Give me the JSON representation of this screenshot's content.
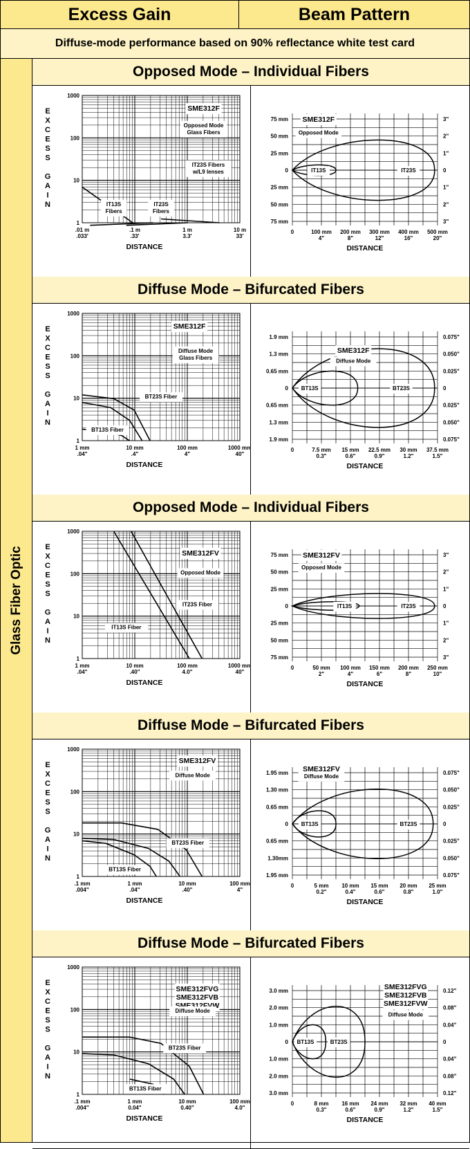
{
  "header": {
    "excess_gain": "Excess Gain",
    "beam_pattern": "Beam Pattern"
  },
  "subheader": "Diffuse-mode performance based on 90% reflectance white test card",
  "sidebar_label": "Glass Fiber Optic",
  "sections": [
    {
      "title": "Opposed Mode – Individual Fibers",
      "gain": {
        "ylabel_letters": [
          "E",
          "X",
          "C",
          "E",
          "S",
          "S",
          "",
          "G",
          "A",
          "I",
          "N"
        ],
        "y_ticks": [
          "1000",
          "100",
          "10",
          "1"
        ],
        "decades": 3,
        "x_ticks": [
          {
            "top": ".01 m",
            "bot": ".033'"
          },
          {
            "top": ".1 m",
            "bot": ".33'"
          },
          {
            "top": "1 m",
            "bot": "3.3'"
          },
          {
            "top": "10 m",
            "bot": "33'"
          }
        ],
        "xlabel": "DISTANCE",
        "boxes": [
          {
            "lines": [
              "SME312F"
            ],
            "fx": 0.77,
            "fy": 0.06,
            "big": true
          },
          {
            "lines": [
              "Opposed Mode",
              "Glass Fibers"
            ],
            "fx": 0.77,
            "fy": 0.2
          },
          {
            "lines": [
              "IT23S Fibers",
              "w/L9 lenses"
            ],
            "fx": 0.8,
            "fy": 0.51
          },
          {
            "lines": [
              "IT13S",
              "Fibers"
            ],
            "fx": 0.2,
            "fy": 0.82
          },
          {
            "lines": [
              "IT23S",
              "Fibers"
            ],
            "fx": 0.5,
            "fy": 0.82
          }
        ],
        "curves": [
          [
            [
              0.0,
              0.72
            ],
            [
              0.32,
              1.0
            ]
          ],
          [
            [
              0.05,
              1.02
            ],
            [
              0.45,
              1.0
            ]
          ],
          [
            [
              0.28,
              1.02
            ],
            [
              0.67,
              1.0
            ]
          ],
          [
            [
              0.5,
              0.97
            ],
            [
              0.87,
              1.0
            ]
          ]
        ]
      },
      "beam": {
        "left_ticks": [
          "75 mm",
          "50 mm",
          "25 mm",
          "0",
          "25 mm",
          "50 mm",
          "75 mm"
        ],
        "right_ticks": [
          "3\"",
          "2\"",
          "1\"",
          "0",
          "1\"",
          "2\"",
          "3\""
        ],
        "x_ticks": [
          {
            "top": "0",
            "bot": ""
          },
          {
            "top": "100 mm",
            "bot": "4\""
          },
          {
            "top": "200 mm",
            "bot": "8\""
          },
          {
            "top": "300 mm",
            "bot": "12\""
          },
          {
            "top": "400 mm",
            "bot": "16\""
          },
          {
            "top": "500 mm",
            "bot": "20\""
          }
        ],
        "xlabel": "DISTANCE",
        "labels": [
          {
            "lines": [
              "SME312F"
            ],
            "fx": 0.18,
            "fy": 0.06,
            "big": true
          },
          {
            "lines": [
              "Opposed Mode"
            ],
            "fx": 0.18,
            "fy": 0.2
          }
        ],
        "lobes": [
          {
            "len": 0.3,
            "half": 0.4,
            "label": "IT13S",
            "lx": 0.18
          },
          {
            "len": 0.98,
            "half": 2.3,
            "label": "IT23S",
            "lx": 0.8
          }
        ]
      }
    },
    {
      "title": "Diffuse Mode – Bifurcated Fibers",
      "gain": {
        "ylabel_letters": [
          "E",
          "X",
          "C",
          "E",
          "S",
          "S",
          "",
          "G",
          "A",
          "I",
          "N"
        ],
        "y_ticks": [
          "1000",
          "100",
          "10",
          "1"
        ],
        "decades": 3,
        "x_ticks": [
          {
            "top": "1 mm",
            "bot": ".04\""
          },
          {
            "top": "10 mm",
            "bot": ".4\""
          },
          {
            "top": "100 mm",
            "bot": "4\""
          },
          {
            "top": "1000 mm",
            "bot": "40\""
          }
        ],
        "xlabel": "DISTANCE",
        "boxes": [
          {
            "lines": [
              "SME312F"
            ],
            "fx": 0.68,
            "fy": 0.06,
            "big": true
          },
          {
            "lines": [
              "Diffuse Mode",
              "Glass Fibers"
            ],
            "fx": 0.72,
            "fy": 0.26
          },
          {
            "lines": [
              "BT23S Fiber"
            ],
            "fx": 0.5,
            "fy": 0.62
          },
          {
            "lines": [
              "BT13S Fiber"
            ],
            "fx": 0.16,
            "fy": 0.88
          }
        ],
        "curves": [
          [
            [
              0.0,
              0.64
            ],
            [
              0.2,
              0.67
            ],
            [
              0.33,
              0.76
            ],
            [
              0.43,
              1.0
            ]
          ],
          [
            [
              0.0,
              0.7
            ],
            [
              0.18,
              0.74
            ],
            [
              0.3,
              0.84
            ],
            [
              0.38,
              1.0
            ]
          ],
          [
            [
              0.0,
              0.91
            ],
            [
              0.15,
              0.93
            ],
            [
              0.25,
              0.96
            ],
            [
              0.3,
              1.0
            ]
          ]
        ]
      },
      "beam": {
        "left_ticks": [
          "1.9 mm",
          "1.3 mm",
          "0.65 mm",
          "0",
          "0.65 mm",
          "1.3 mm",
          "1.9 mm"
        ],
        "right_ticks": [
          "0.075\"",
          "0.050\"",
          "0.025\"",
          "0",
          "0.025\"",
          "0.050\"",
          "0.075\""
        ],
        "x_ticks": [
          {
            "top": "0",
            "bot": ""
          },
          {
            "top": "7.5 mm",
            "bot": "0.3\""
          },
          {
            "top": "15 mm",
            "bot": "0.6\""
          },
          {
            "top": "22.5 mm",
            "bot": "0.9\""
          },
          {
            "top": "30 mm",
            "bot": "1.2\""
          },
          {
            "top": "37.5 mm",
            "bot": "1.5\""
          }
        ],
        "xlabel": "DISTANCE",
        "labels": [
          {
            "lines": [
              "SME312F"
            ],
            "fx": 0.42,
            "fy": 0.19,
            "big": true
          },
          {
            "lines": [
              "Diffuse Mode"
            ],
            "fx": 0.42,
            "fy": 0.3
          }
        ],
        "lobes": [
          {
            "len": 0.45,
            "half": 1.3,
            "label": "BT13S",
            "lx": 0.12
          },
          {
            "len": 0.98,
            "half": 3.0,
            "label": "BT23S",
            "lx": 0.75
          }
        ]
      }
    },
    {
      "title": "Opposed Mode – Individual Fibers",
      "gain": {
        "ylabel_letters": [
          "E",
          "X",
          "C",
          "E",
          "S",
          "S",
          "",
          "G",
          "A",
          "I",
          "N"
        ],
        "y_ticks": [
          "1000",
          "100",
          "10",
          "1"
        ],
        "decades": 3,
        "x_ticks": [
          {
            "top": "1 mm",
            "bot": ".04\""
          },
          {
            "top": "10 mm",
            "bot": ".40\""
          },
          {
            "top": "100 mm",
            "bot": "4.0\""
          },
          {
            "top": "1000 mm",
            "bot": "40\""
          }
        ],
        "xlabel": "DISTANCE",
        "boxes": [
          {
            "lines": [
              "SME312FV"
            ],
            "fx": 0.75,
            "fy": 0.13,
            "big": true
          },
          {
            "lines": [
              "Opposed Mode"
            ],
            "fx": 0.75,
            "fy": 0.29
          },
          {
            "lines": [
              "IT23S Fiber"
            ],
            "fx": 0.73,
            "fy": 0.54
          },
          {
            "lines": [
              "IT13S Fiber"
            ],
            "fx": 0.28,
            "fy": 0.72
          }
        ],
        "curves": [
          [
            [
              0.2,
              0.0
            ],
            [
              0.68,
              1.0
            ]
          ],
          [
            [
              0.31,
              0.0
            ],
            [
              0.76,
              1.0
            ]
          ]
        ]
      },
      "beam": {
        "left_ticks": [
          "75 mm",
          "50 mm",
          "25 mm",
          "0",
          "25 mm",
          "50 mm",
          "75 mm"
        ],
        "right_ticks": [
          "3\"",
          "2\"",
          "1\"",
          "0",
          "1\"",
          "2\"",
          "3\""
        ],
        "x_ticks": [
          {
            "top": "0",
            "bot": ""
          },
          {
            "top": "50 mm",
            "bot": "2\""
          },
          {
            "top": "100 mm",
            "bot": "4\""
          },
          {
            "top": "150 mm",
            "bot": "6\""
          },
          {
            "top": "200 mm",
            "bot": "8\""
          },
          {
            "top": "250 mm",
            "bot": "10\""
          }
        ],
        "xlabel": "DISTANCE",
        "labels": [
          {
            "lines": [
              "SME312FV"
            ],
            "fx": 0.2,
            "fy": 0.06,
            "big": true
          },
          {
            "lines": [
              "Opposed Mode"
            ],
            "fx": 0.2,
            "fy": 0.19
          }
        ],
        "lobes": [
          {
            "len": 0.46,
            "half": 0.32,
            "label": "IT13S",
            "lx": 0.36
          },
          {
            "len": 0.98,
            "half": 0.95,
            "label": "IT23S",
            "lx": 0.8
          }
        ]
      }
    },
    {
      "title": "Diffuse Mode – Bifurcated Fibers",
      "gain": {
        "ylabel_letters": [
          "E",
          "X",
          "C",
          "E",
          "S",
          "S",
          "",
          "G",
          "A",
          "I",
          "N"
        ],
        "y_ticks": [
          "1000",
          "100",
          "10",
          "1"
        ],
        "decades": 3,
        "x_ticks": [
          {
            "top": ".1 mm",
            "bot": ".004\""
          },
          {
            "top": "1 mm",
            "bot": ".04\""
          },
          {
            "top": "10 mm",
            "bot": ".40\""
          },
          {
            "top": "100 mm",
            "bot": "4\""
          }
        ],
        "xlabel": "DISTANCE",
        "boxes": [
          {
            "lines": [
              "SME312FV"
            ],
            "fx": 0.73,
            "fy": 0.05,
            "big": true
          },
          {
            "lines": [
              "Diffuse Mode"
            ],
            "fx": 0.7,
            "fy": 0.17
          },
          {
            "lines": [
              "BT23S Fiber"
            ],
            "fx": 0.67,
            "fy": 0.7
          },
          {
            "lines": [
              "BT13S Fiber"
            ],
            "fx": 0.27,
            "fy": 0.91
          }
        ],
        "curves": [
          [
            [
              0.0,
              0.58
            ],
            [
              0.25,
              0.58
            ],
            [
              0.48,
              0.63
            ],
            [
              0.66,
              0.79
            ],
            [
              0.76,
              1.0
            ]
          ],
          [
            [
              0.0,
              0.7
            ],
            [
              0.2,
              0.71
            ],
            [
              0.42,
              0.78
            ],
            [
              0.55,
              0.88
            ],
            [
              0.62,
              1.0
            ]
          ],
          [
            [
              0.0,
              0.72
            ],
            [
              0.15,
              0.74
            ],
            [
              0.33,
              0.83
            ],
            [
              0.43,
              0.92
            ],
            [
              0.47,
              1.0
            ]
          ]
        ]
      },
      "beam": {
        "left_ticks": [
          "1.95 mm",
          "1.30 mm",
          "0.65 mm",
          "0",
          "0.65 mm",
          "1.30mm",
          "1.95 mm"
        ],
        "right_ticks": [
          "0.075\"",
          "0.050\"",
          "0.025\"",
          "0",
          "0.025\"",
          "0.050\"",
          "0.075\""
        ],
        "x_ticks": [
          {
            "top": "0",
            "bot": ""
          },
          {
            "top": "5 mm",
            "bot": "0.2\""
          },
          {
            "top": "10 mm",
            "bot": "0.4\""
          },
          {
            "top": "15 mm",
            "bot": "0.6\""
          },
          {
            "top": "20 mm",
            "bot": "0.8\""
          },
          {
            "top": "25 mm",
            "bot": "1.0\""
          }
        ],
        "xlabel": "DISTANCE",
        "labels": [
          {
            "lines": [
              "SME312FV"
            ],
            "fx": 0.2,
            "fy": 0.02,
            "big": true
          },
          {
            "lines": [
              "Diffuse Mode"
            ],
            "fx": 0.2,
            "fy": 0.1
          }
        ],
        "lobes": [
          {
            "len": 0.3,
            "half": 1.0,
            "label": "BT13S",
            "lx": 0.12
          },
          {
            "len": 0.97,
            "half": 2.65,
            "label": "BT23S",
            "lx": 0.8
          }
        ]
      }
    },
    {
      "title": "Diffuse Mode – Bifurcated Fibers",
      "gain": {
        "ylabel_letters": [
          "E",
          "X",
          "C",
          "E",
          "S",
          "S",
          "",
          "G",
          "A",
          "I",
          "N"
        ],
        "y_ticks": [
          "1000",
          "100",
          "10",
          "1"
        ],
        "decades": 3,
        "x_ticks": [
          {
            "top": ".1 mm",
            "bot": ".004\""
          },
          {
            "top": "1 mm",
            "bot": "0.04\""
          },
          {
            "top": "10 mm",
            "bot": "0.40\""
          },
          {
            "top": "100 mm",
            "bot": "4.0\""
          }
        ],
        "xlabel": "DISTANCE",
        "boxes": [
          {
            "lines": [
              "SME312FVG",
              "SME312FVB",
              "SME312FVW"
            ],
            "fx": 0.73,
            "fy": 0.13,
            "big": true
          },
          {
            "lines": [
              "Diffuse Mode"
            ],
            "fx": 0.7,
            "fy": 0.31
          },
          {
            "lines": [
              "BT23S Fiber"
            ],
            "fx": 0.65,
            "fy": 0.6
          },
          {
            "lines": [
              "BT13S Fiber"
            ],
            "fx": 0.4,
            "fy": 0.92
          }
        ],
        "curves": [
          [
            [
              0.0,
              0.55
            ],
            [
              0.3,
              0.55
            ],
            [
              0.5,
              0.6
            ],
            [
              0.68,
              0.78
            ],
            [
              0.77,
              1.0
            ]
          ],
          [
            [
              0.0,
              0.68
            ],
            [
              0.2,
              0.69
            ],
            [
              0.42,
              0.76
            ],
            [
              0.58,
              0.88
            ],
            [
              0.65,
              1.0
            ]
          ],
          [
            [
              0.3,
              0.88
            ],
            [
              0.45,
              0.92
            ],
            [
              0.52,
              1.0
            ]
          ]
        ]
      },
      "beam": {
        "left_ticks": [
          "3.0 mm",
          "2.0 mm",
          "1.0 mm",
          "0",
          "1.0 mm",
          "2.0 mm",
          "3.0 mm"
        ],
        "right_ticks": [
          "0.12\"",
          "0.08\"",
          "0.04\"",
          "0",
          "0.04\"",
          "0.08\"",
          "0.12\""
        ],
        "x_ticks": [
          {
            "top": "0",
            "bot": ""
          },
          {
            "top": "8 mm",
            "bot": "0.3\""
          },
          {
            "top": "16 mm",
            "bot": "0.6\""
          },
          {
            "top": "24 mm",
            "bot": "0.9\""
          },
          {
            "top": "32 mm",
            "bot": "1.2\""
          },
          {
            "top": "40 mm",
            "bot": "1.5\""
          }
        ],
        "xlabel": "DISTANCE",
        "labels": [
          {
            "lines": [
              "SME312FVG",
              "SME312FVB",
              "SME312FVW"
            ],
            "fx": 0.78,
            "fy": 0.02,
            "big": true
          },
          {
            "lines": [
              "Diffuse Mode"
            ],
            "fx": 0.78,
            "fy": 0.3
          }
        ],
        "lobes": [
          {
            "len": 0.23,
            "half": 1.3,
            "label": "BT13S",
            "lx": 0.09
          },
          {
            "len": 0.5,
            "half": 2.7,
            "label": "BT23S",
            "lx": 0.32
          }
        ]
      }
    }
  ]
}
